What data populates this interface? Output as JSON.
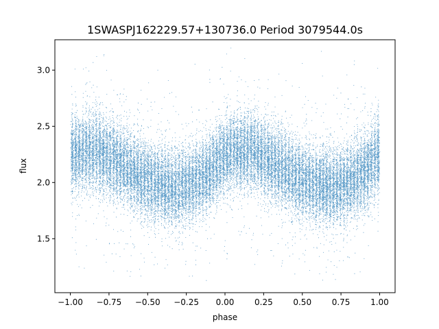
{
  "chart_data": {
    "type": "scatter",
    "title": "1SWASPJ162229.57+130736.0 Period 3079544.0s",
    "xlabel": "phase",
    "ylabel": "flux",
    "xlim": [
      -1.1,
      1.1
    ],
    "ylim": [
      1.02,
      3.27
    ],
    "xticks": [
      -1.0,
      -0.75,
      -0.5,
      -0.25,
      0.0,
      0.25,
      0.5,
      0.75,
      1.0
    ],
    "xtick_labels": [
      "−1.00",
      "−0.75",
      "−0.50",
      "−0.25",
      "0.00",
      "0.25",
      "0.50",
      "0.75",
      "1.00"
    ],
    "yticks": [
      1.5,
      2.0,
      2.5,
      3.0
    ],
    "ytick_labels": [
      "1.5",
      "2.0",
      "2.5",
      "3.0"
    ],
    "grid": false,
    "color": "#1f77b4",
    "series": [
      {
        "profile_phase": [
          -1.0,
          -0.9,
          -0.8,
          -0.7,
          -0.6,
          -0.5,
          -0.4,
          -0.3,
          -0.2,
          -0.1,
          0.0,
          0.1,
          0.2,
          0.3,
          0.4,
          0.5,
          0.6,
          0.7,
          0.8,
          0.9,
          1.0
        ],
        "profile_flux": [
          2.25,
          2.28,
          2.27,
          2.18,
          2.1,
          2.02,
          1.98,
          1.95,
          2.0,
          2.1,
          2.25,
          2.28,
          2.27,
          2.18,
          2.1,
          2.02,
          1.98,
          1.95,
          2.0,
          2.1,
          2.25
        ],
        "scatter_sd": 0.16,
        "flux_range": [
          1.1,
          3.2
        ],
        "n_points": 30000
      }
    ]
  }
}
